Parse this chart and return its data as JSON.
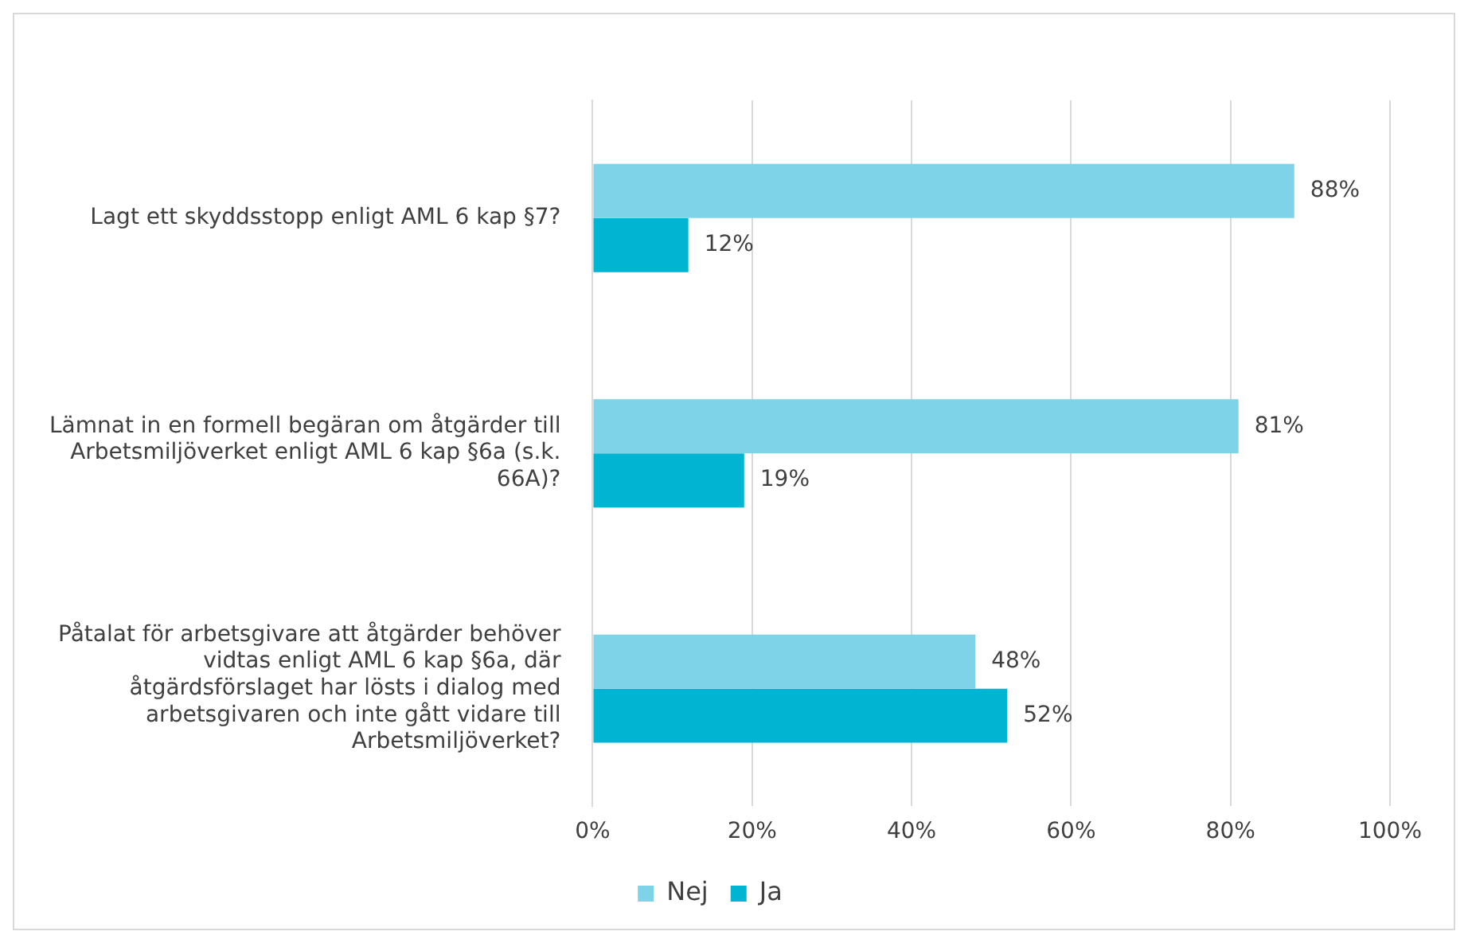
{
  "chart_data": {
    "type": "bar",
    "orientation": "horizontal",
    "categories": [
      "Lagt ett skyddsstopp enligt AML 6 kap §7?",
      "Lämnat in en formell begäran om åtgärder till Arbetsmiljöverket enligt AML 6 kap §6a (s.k. 66A)?",
      "Påtalat för arbetsgivare att åtgärder behöver vidtas enligt AML 6 kap §6a, där åtgärdsförslaget har lösts i dialog med arbetsgivaren och inte gått vidare till Arbetsmiljöverket?"
    ],
    "series": [
      {
        "name": "Nej",
        "color": "#7fd3e8",
        "values": [
          88,
          81,
          48
        ],
        "value_labels": [
          "88%",
          "81%",
          "48%"
        ]
      },
      {
        "name": "Ja",
        "color": "#00b4d2",
        "values": [
          12,
          19,
          52
        ],
        "value_labels": [
          "12%",
          "19%",
          "52%"
        ]
      }
    ],
    "xlim": [
      0,
      100
    ],
    "xticks": [
      {
        "value": 0,
        "label": "0%"
      },
      {
        "value": 20,
        "label": "20%"
      },
      {
        "value": 40,
        "label": "40%"
      },
      {
        "value": 60,
        "label": "60%"
      },
      {
        "value": 80,
        "label": "80%"
      },
      {
        "value": 100,
        "label": "100%"
      }
    ],
    "grid": "x",
    "legend": "bottom"
  }
}
